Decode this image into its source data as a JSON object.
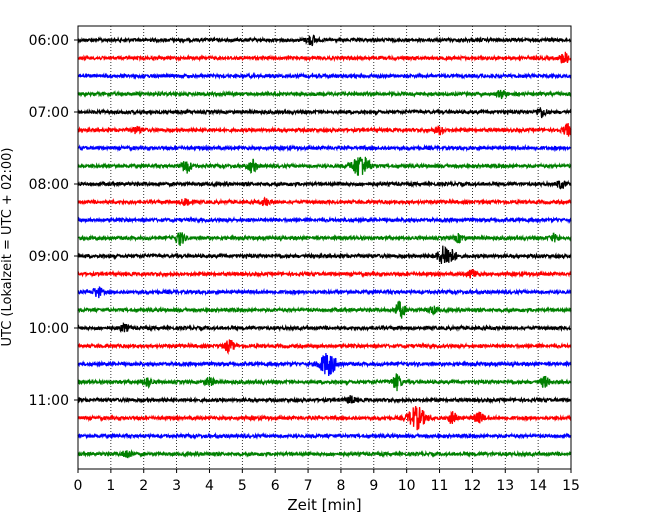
{
  "chart_data": {
    "type": "line",
    "title": "",
    "xlabel": "Zeit  [min]",
    "ylabel": "UTC (Lokalzeit = UTC + 02:00)",
    "xlim": [
      0,
      15
    ],
    "x_ticks": [
      "0",
      "1",
      "2",
      "3",
      "4",
      "5",
      "6",
      "7",
      "8",
      "9",
      "10",
      "11",
      "12",
      "13",
      "14",
      "15"
    ],
    "y_ticks": [
      "06:00",
      "07:00",
      "08:00",
      "09:00",
      "10:00",
      "11:00"
    ],
    "grid": "vertical dotted",
    "legend": "none",
    "trace_colors": [
      "#000000",
      "#ff0000",
      "#0000ff",
      "#008000"
    ],
    "traces": [
      {
        "start": "06:00",
        "events": [
          {
            "t": 7.1,
            "a": 0.45
          }
        ]
      },
      {
        "start": "06:15",
        "events": [
          {
            "t": 14.8,
            "a": 0.5
          }
        ]
      },
      {
        "start": "06:30",
        "events": []
      },
      {
        "start": "06:45",
        "events": [
          {
            "t": 12.9,
            "a": 0.35
          }
        ]
      },
      {
        "start": "07:00",
        "events": [
          {
            "t": 14.1,
            "a": 0.45
          }
        ]
      },
      {
        "start": "07:15",
        "events": [
          {
            "t": 1.8,
            "a": 0.3
          },
          {
            "t": 11.0,
            "a": 0.35
          },
          {
            "t": 14.9,
            "a": 0.5
          }
        ]
      },
      {
        "start": "07:30",
        "events": []
      },
      {
        "start": "07:45",
        "events": [
          {
            "t": 3.3,
            "a": 0.6
          },
          {
            "t": 5.3,
            "a": 0.55
          },
          {
            "t": 8.6,
            "a": 1.0
          }
        ]
      },
      {
        "start": "08:00",
        "events": [
          {
            "t": 14.7,
            "a": 0.35
          }
        ]
      },
      {
        "start": "08:15",
        "events": [
          {
            "t": 3.3,
            "a": 0.35
          },
          {
            "t": 5.7,
            "a": 0.3
          }
        ]
      },
      {
        "start": "08:30",
        "events": []
      },
      {
        "start": "08:45",
        "events": [
          {
            "t": 3.1,
            "a": 0.6
          },
          {
            "t": 11.6,
            "a": 0.35
          },
          {
            "t": 14.5,
            "a": 0.3
          }
        ]
      },
      {
        "start": "09:00",
        "events": [
          {
            "t": 11.2,
            "a": 0.95
          }
        ]
      },
      {
        "start": "09:15",
        "events": [
          {
            "t": 12.0,
            "a": 0.35
          }
        ]
      },
      {
        "start": "09:30",
        "events": [
          {
            "t": 0.6,
            "a": 0.45
          }
        ]
      },
      {
        "start": "09:45",
        "events": [
          {
            "t": 9.8,
            "a": 0.75
          },
          {
            "t": 10.8,
            "a": 0.3
          }
        ]
      },
      {
        "start": "10:00",
        "events": [
          {
            "t": 1.4,
            "a": 0.3
          }
        ]
      },
      {
        "start": "10:15",
        "events": [
          {
            "t": 4.6,
            "a": 0.55
          }
        ]
      },
      {
        "start": "10:30",
        "events": [
          {
            "t": 7.6,
            "a": 1.0
          }
        ]
      },
      {
        "start": "10:45",
        "events": [
          {
            "t": 2.1,
            "a": 0.4
          },
          {
            "t": 4.0,
            "a": 0.35
          },
          {
            "t": 9.7,
            "a": 0.7
          },
          {
            "t": 14.2,
            "a": 0.45
          }
        ]
      },
      {
        "start": "11:00",
        "events": [
          {
            "t": 8.3,
            "a": 0.3
          }
        ]
      },
      {
        "start": "11:15",
        "events": [
          {
            "t": 10.3,
            "a": 1.0
          },
          {
            "t": 11.4,
            "a": 0.5
          },
          {
            "t": 12.2,
            "a": 0.45
          }
        ]
      },
      {
        "start": "11:30",
        "events": []
      },
      {
        "start": "11:45",
        "events": [
          {
            "t": 1.5,
            "a": 0.35
          }
        ]
      }
    ]
  }
}
